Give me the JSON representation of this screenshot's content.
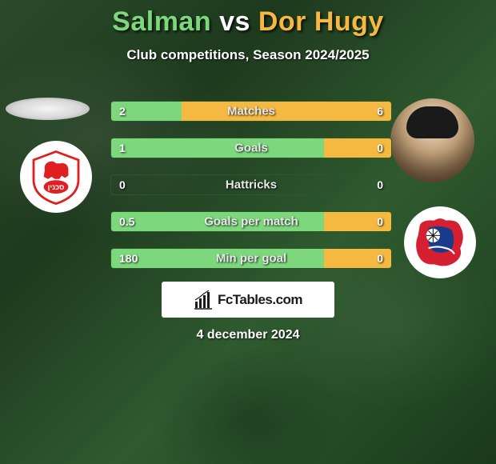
{
  "title": {
    "player1": "Salman",
    "vs": "vs",
    "player2": "Dor Hugy",
    "player1_color": "#7dd87d",
    "vs_color": "#ffffff",
    "player2_color": "#f5b840"
  },
  "subtitle": "Club competitions, Season 2024/2025",
  "date": "4 december 2024",
  "logo": "FcTables.com",
  "bar_style": {
    "left_color": "#7dd87d",
    "right_color": "#f5b840",
    "border_color": "#2a5a2a",
    "label_color": "#e8e8e8"
  },
  "stats": [
    {
      "label": "Matches",
      "left_val": "2",
      "right_val": "6",
      "left_pct": 25,
      "right_pct": 75
    },
    {
      "label": "Goals",
      "left_val": "1",
      "right_val": "0",
      "left_pct": 76,
      "right_pct": 24
    },
    {
      "label": "Hattricks",
      "left_val": "0",
      "right_val": "0",
      "left_pct": 0,
      "right_pct": 0
    },
    {
      "label": "Goals per match",
      "left_val": "0.5",
      "right_val": "0",
      "left_pct": 76,
      "right_pct": 24
    },
    {
      "label": "Min per goal",
      "left_val": "180",
      "right_val": "0",
      "left_pct": 76,
      "right_pct": 24
    }
  ]
}
